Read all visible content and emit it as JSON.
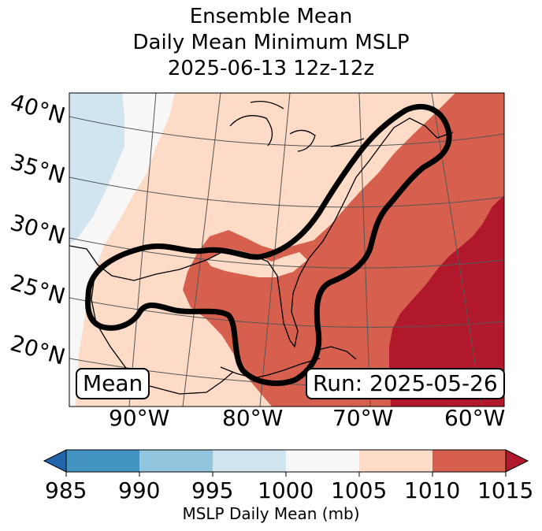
{
  "title": {
    "line1": "Ensemble Mean",
    "line2": "Daily Mean Minimum MSLP",
    "line3": "2025-06-13 12z-12z"
  },
  "map": {
    "lat_labels": [
      "40°N",
      "35°N",
      "30°N",
      "25°N",
      "20°N"
    ],
    "lon_labels": [
      "90°W",
      "80°W",
      "70°W",
      "60°W"
    ],
    "stat_label": "Mean",
    "run_label": "Run: 2025-05-26"
  },
  "colorbar": {
    "ticks": [
      "985",
      "990",
      "995",
      "1000",
      "1005",
      "1010",
      "1015"
    ],
    "bins": [
      {
        "range": "<985",
        "color": "#2166ac"
      },
      {
        "range": "985-990",
        "color": "#4393c3"
      },
      {
        "range": "990-995",
        "color": "#92c5de"
      },
      {
        "range": "995-1000",
        "color": "#d1e5f0"
      },
      {
        "range": "1000-1005",
        "color": "#f7f7f7"
      },
      {
        "range": "1005-1010",
        "color": "#fddbc7"
      },
      {
        "range": "1010-1015",
        "color": "#d6604d"
      },
      {
        "range": ">1015",
        "color": "#b2182b"
      }
    ],
    "label": "MSLP Daily Mean (mb)"
  }
}
